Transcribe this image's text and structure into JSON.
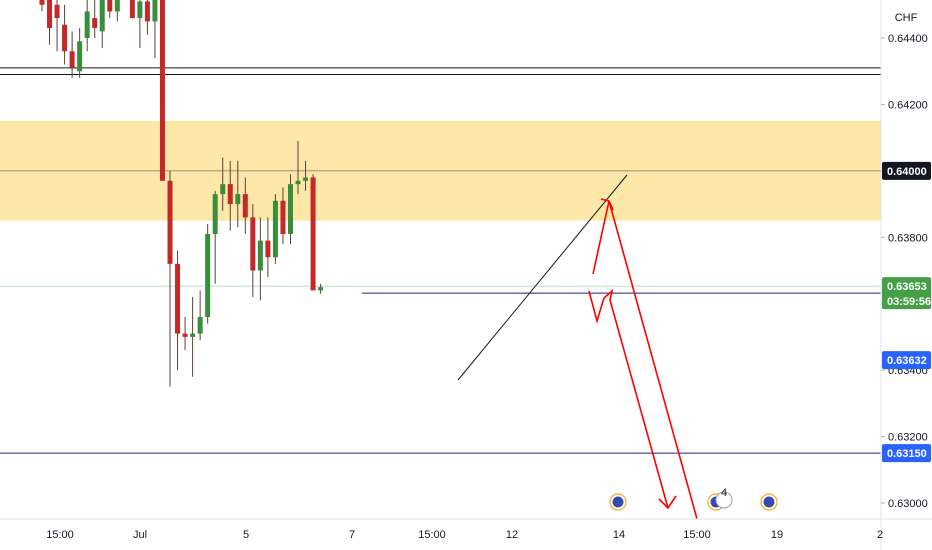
{
  "currency": "CHF",
  "colors": {
    "up": "#26a69a",
    "up_body": "#388e3c",
    "down": "#c62828",
    "zone": "#fde39a",
    "arrow": "#ff0000",
    "level_blue": "#1a237e",
    "price_tag": "#43a047",
    "tag_blue": "#2962ff",
    "tag_dark": "#131722"
  },
  "chart_data": {
    "type": "candlestick",
    "y_ticks": [
      "0.64400",
      "0.64200",
      "0.64000",
      "0.63800",
      "0.63600",
      "0.63400",
      "0.63200",
      "0.63000"
    ],
    "y_tick_values": [
      0.644,
      0.642,
      0.64,
      0.638,
      0.636,
      0.634,
      0.632,
      0.63
    ],
    "ylim": [
      0.6296,
      0.6457
    ],
    "x_ticks": [
      "15:00",
      "Jul",
      "5",
      "7",
      "15:00",
      "12",
      "14",
      "15:00",
      "19",
      "2"
    ],
    "price_tags": {
      "last_price": "0.63653",
      "countdown": "03:59:56",
      "level_1": "0.63632",
      "level_2": "0.63150",
      "resistance": "0.64000"
    },
    "levels": {
      "supply_zone": [
        0.6385,
        0.6415
      ],
      "double_line": [
        0.6431,
        0.6429
      ],
      "resistance_line": 0.64,
      "support_line": 0.63632,
      "target_line": 0.6315
    },
    "candles": [
      {
        "o": 0.6454,
        "h": 0.6457,
        "l": 0.6448,
        "c": 0.645
      },
      {
        "o": 0.6452,
        "h": 0.6457,
        "l": 0.6438,
        "c": 0.6443
      },
      {
        "o": 0.645,
        "h": 0.6457,
        "l": 0.6436,
        "c": 0.6446
      },
      {
        "o": 0.6444,
        "h": 0.645,
        "l": 0.6432,
        "c": 0.6436
      },
      {
        "o": 0.6436,
        "h": 0.6442,
        "l": 0.6428,
        "c": 0.6431
      },
      {
        "o": 0.643,
        "h": 0.6443,
        "l": 0.6428,
        "c": 0.6439
      },
      {
        "o": 0.644,
        "h": 0.6452,
        "l": 0.6436,
        "c": 0.6448
      },
      {
        "o": 0.6446,
        "h": 0.6454,
        "l": 0.644,
        "c": 0.6443
      },
      {
        "o": 0.6442,
        "h": 0.6457,
        "l": 0.6437,
        "c": 0.6452
      },
      {
        "o": 0.6452,
        "h": 0.6457,
        "l": 0.6446,
        "c": 0.6448
      },
      {
        "o": 0.6448,
        "h": 0.6457,
        "l": 0.6445,
        "c": 0.6455
      },
      {
        "o": 0.6455,
        "h": 0.6457,
        "l": 0.6452,
        "c": 0.6457
      },
      {
        "o": 0.6457,
        "h": 0.6457,
        "l": 0.6446,
        "c": 0.6446
      },
      {
        "o": 0.6446,
        "h": 0.6457,
        "l": 0.6437,
        "c": 0.6451
      },
      {
        "o": 0.6451,
        "h": 0.6457,
        "l": 0.6441,
        "c": 0.6445
      },
      {
        "o": 0.6445,
        "h": 0.6457,
        "l": 0.6434,
        "c": 0.6457
      },
      {
        "o": 0.6457,
        "h": 0.6457,
        "l": 0.6397,
        "c": 0.6397
      },
      {
        "o": 0.6397,
        "h": 0.64,
        "l": 0.6335,
        "c": 0.6372
      },
      {
        "o": 0.6372,
        "h": 0.6376,
        "l": 0.634,
        "c": 0.6351
      },
      {
        "o": 0.6351,
        "h": 0.6356,
        "l": 0.6346,
        "c": 0.635
      },
      {
        "o": 0.635,
        "h": 0.6362,
        "l": 0.6338,
        "c": 0.6351
      },
      {
        "o": 0.6351,
        "h": 0.6364,
        "l": 0.6349,
        "c": 0.6356
      },
      {
        "o": 0.6356,
        "h": 0.6384,
        "l": 0.6354,
        "c": 0.6381
      },
      {
        "o": 0.6381,
        "h": 0.6394,
        "l": 0.6366,
        "c": 0.6393
      },
      {
        "o": 0.6393,
        "h": 0.6404,
        "l": 0.6388,
        "c": 0.6396
      },
      {
        "o": 0.6396,
        "h": 0.6403,
        "l": 0.6382,
        "c": 0.639
      },
      {
        "o": 0.639,
        "h": 0.6403,
        "l": 0.6383,
        "c": 0.6393
      },
      {
        "o": 0.6393,
        "h": 0.6398,
        "l": 0.6381,
        "c": 0.6386
      },
      {
        "o": 0.6386,
        "h": 0.639,
        "l": 0.6362,
        "c": 0.637
      },
      {
        "o": 0.637,
        "h": 0.6386,
        "l": 0.6361,
        "c": 0.6379
      },
      {
        "o": 0.6379,
        "h": 0.6386,
        "l": 0.6368,
        "c": 0.6374
      },
      {
        "o": 0.6374,
        "h": 0.6393,
        "l": 0.6372,
        "c": 0.6391
      },
      {
        "o": 0.6391,
        "h": 0.6395,
        "l": 0.6378,
        "c": 0.6381
      },
      {
        "o": 0.6381,
        "h": 0.6399,
        "l": 0.6378,
        "c": 0.6396
      },
      {
        "o": 0.6396,
        "h": 0.6409,
        "l": 0.6393,
        "c": 0.6397
      },
      {
        "o": 0.6397,
        "h": 0.6403,
        "l": 0.6394,
        "c": 0.6398
      },
      {
        "o": 0.6398,
        "h": 0.6399,
        "l": 0.6364,
        "c": 0.6364
      },
      {
        "o": 0.6364,
        "h": 0.6366,
        "l": 0.6363,
        "c": 0.6365
      }
    ],
    "trendline": [
      [
        0.6337,
        0.6398
      ]
    ],
    "events_count": "4"
  }
}
